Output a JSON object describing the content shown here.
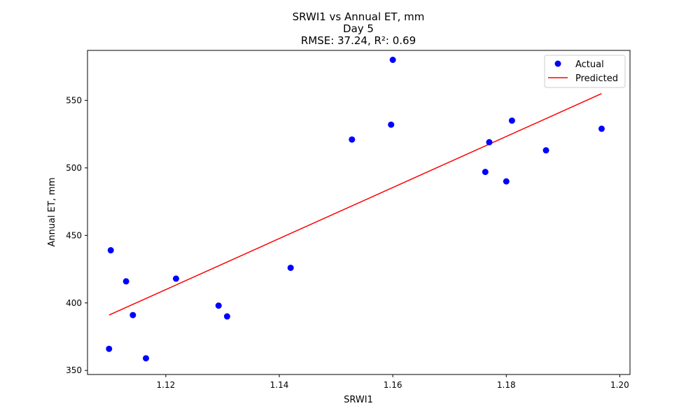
{
  "chart_data": {
    "type": "scatter",
    "title_lines": [
      "SRWI1 vs Annual ET, mm",
      "Day 5",
      "RMSE: 37.24, R²: 0.69"
    ],
    "xlabel": "SRWI1",
    "ylabel": "Annual ET, mm",
    "xlim": [
      1.1062,
      1.2018
    ],
    "ylim": [
      347,
      587
    ],
    "x_ticks": [
      1.12,
      1.14,
      1.16,
      1.18,
      1.2
    ],
    "x_tick_labels": [
      "1.12",
      "1.14",
      "1.16",
      "1.18",
      "1.20"
    ],
    "y_ticks": [
      350,
      400,
      450,
      500,
      550
    ],
    "y_tick_labels": [
      "350",
      "400",
      "450",
      "500",
      "550"
    ],
    "grid": false,
    "legend_position": "top-right",
    "series": [
      {
        "name": "Actual",
        "kind": "scatter",
        "color": "#0000ff",
        "points": [
          [
            1.11,
            366
          ],
          [
            1.1103,
            439
          ],
          [
            1.113,
            416
          ],
          [
            1.1142,
            391
          ],
          [
            1.1165,
            359
          ],
          [
            1.1218,
            418
          ],
          [
            1.1293,
            398
          ],
          [
            1.1308,
            390
          ],
          [
            1.142,
            426
          ],
          [
            1.1528,
            521
          ],
          [
            1.1597,
            532
          ],
          [
            1.16,
            580
          ],
          [
            1.1763,
            497
          ],
          [
            1.177,
            519
          ],
          [
            1.18,
            490
          ],
          [
            1.181,
            535
          ],
          [
            1.187,
            513
          ],
          [
            1.1968,
            529
          ]
        ]
      },
      {
        "name": "Predicted",
        "kind": "line",
        "color": "#ff0000",
        "points": [
          [
            1.11,
            391
          ],
          [
            1.1968,
            555
          ]
        ]
      }
    ]
  }
}
